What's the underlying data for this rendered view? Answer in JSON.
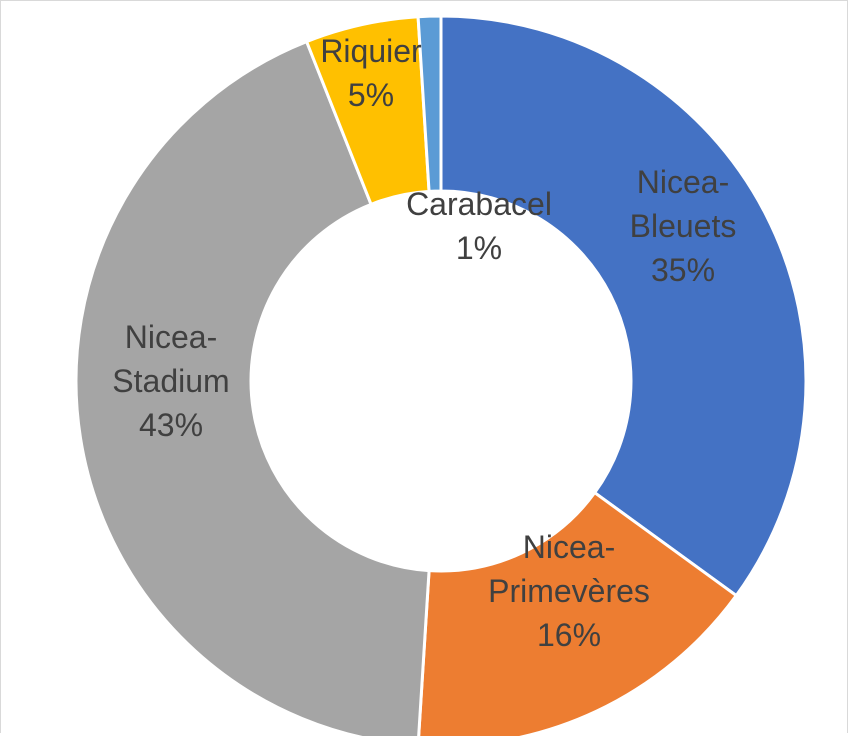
{
  "chart_data": {
    "type": "pie",
    "subtype": "donut",
    "slices": [
      {
        "label": "Nicea-Bleuets",
        "label_lines": [
          "Nicea-",
          "Bleuets"
        ],
        "percent_label": "35%",
        "value": 35,
        "color": "#4472C4"
      },
      {
        "label": "Nicea-Primevères",
        "label_lines": [
          "Nicea-",
          "Primevères"
        ],
        "percent_label": "16%",
        "value": 16,
        "color": "#ED7D31"
      },
      {
        "label": "Nicea-Stadium",
        "label_lines": [
          "Nicea-",
          "Stadium"
        ],
        "percent_label": "43%",
        "value": 43,
        "color": "#A5A5A5"
      },
      {
        "label": "Riquier",
        "label_lines": [
          "Riquier"
        ],
        "percent_label": "5%",
        "value": 5,
        "color": "#FFC000"
      },
      {
        "label": "Carabacel",
        "label_lines": [
          "Carabacel"
        ],
        "percent_label": "1%",
        "value": 1,
        "color": "#5B9BD5"
      }
    ],
    "title": "",
    "legend": "none"
  }
}
